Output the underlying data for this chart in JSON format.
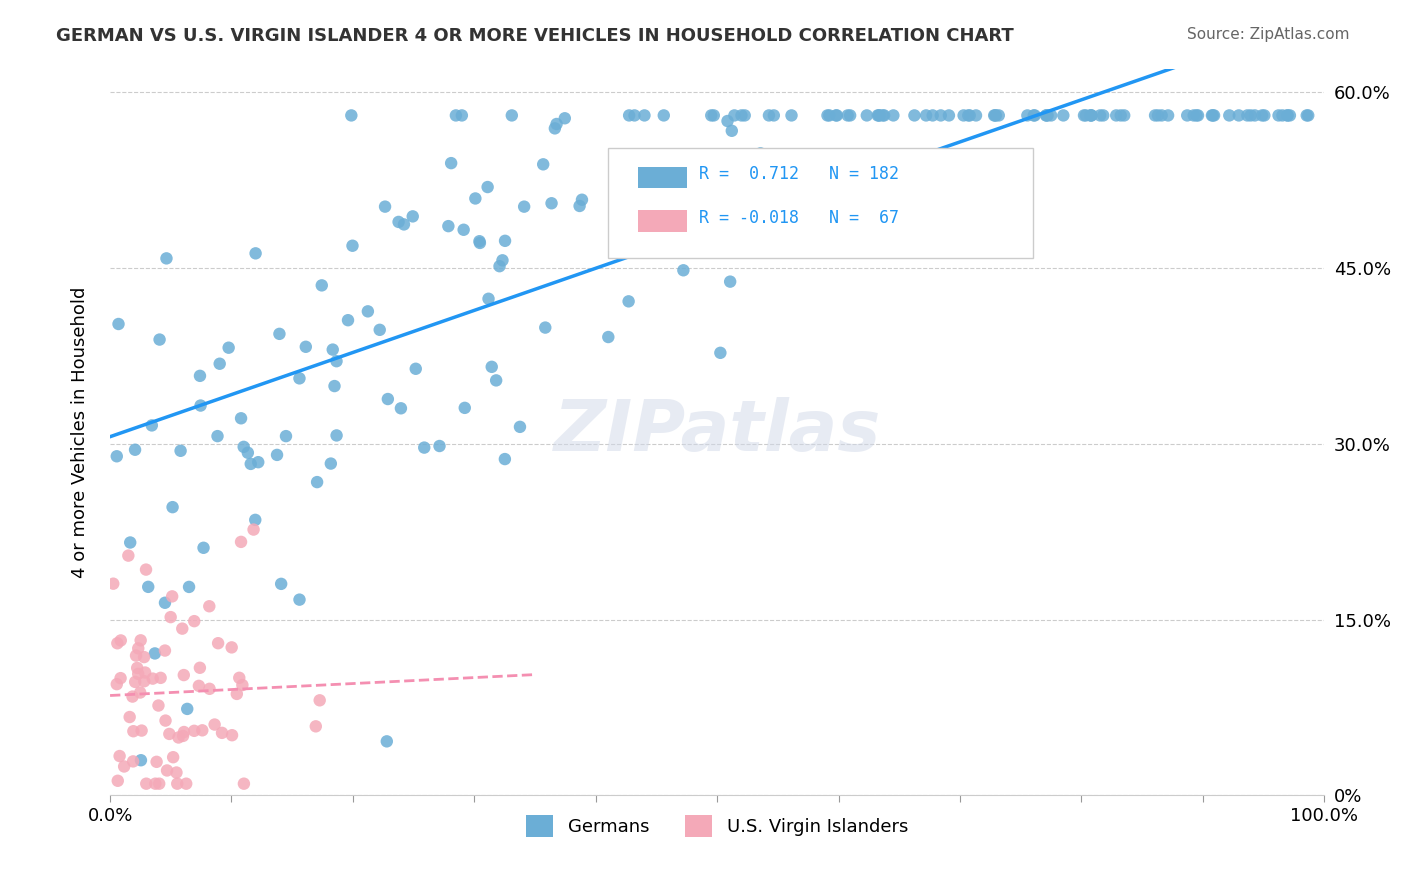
{
  "title": "GERMAN VS U.S. VIRGIN ISLANDER 4 OR MORE VEHICLES IN HOUSEHOLD CORRELATION CHART",
  "source": "Source: ZipAtlas.com",
  "xlabel_ticks": [
    "0.0%",
    "100.0%"
  ],
  "ylabel_ticks": [
    "0%",
    "15.0%",
    "30.0%",
    "45.0%",
    "60.0%"
  ],
  "ylabel_label": "4 or more Vehicles in Household",
  "legend_labels": [
    "Germans",
    "U.S. Virgin Islanders"
  ],
  "legend_r": [
    "R =  0.712",
    "R = -0.018"
  ],
  "legend_n": [
    "N = 182",
    "N =  67"
  ],
  "blue_color": "#6baed6",
  "pink_color": "#f4a9b8",
  "blue_line_color": "#2196F3",
  "pink_line_color": "#f48fb1",
  "watermark": "ZIPatlas",
  "blue_R": 0.712,
  "blue_N": 182,
  "pink_R": -0.018,
  "pink_N": 67,
  "xlim": [
    0,
    1
  ],
  "ylim": [
    0,
    0.62
  ]
}
